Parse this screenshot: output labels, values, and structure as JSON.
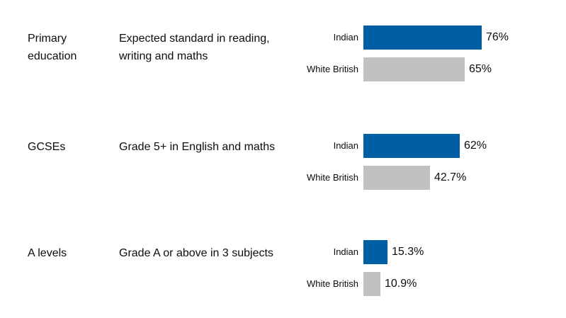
{
  "chart_data": {
    "type": "bar",
    "orientation": "horizontal",
    "colors": {
      "Indian": "#005ea5",
      "White British": "#bfc1c3"
    },
    "rows": [
      {
        "stage": "Primary education",
        "measure": "Expected standard in reading, writing and maths",
        "bars": [
          {
            "label": "Indian",
            "value": 76,
            "display": "76%"
          },
          {
            "label": "White British",
            "value": 65,
            "display": "65%"
          }
        ]
      },
      {
        "stage": "GCSEs",
        "measure": "Grade 5+ in English and maths",
        "bars": [
          {
            "label": "Indian",
            "value": 62,
            "display": "62%"
          },
          {
            "label": "White British",
            "value": 42.7,
            "display": "42.7%"
          }
        ]
      },
      {
        "stage": "A levels",
        "measure": "Grade A or above in 3 subjects",
        "bars": [
          {
            "label": "Indian",
            "value": 15.3,
            "display": "15.3%"
          },
          {
            "label": "White British",
            "value": 10.9,
            "display": "10.9%"
          }
        ]
      }
    ]
  }
}
